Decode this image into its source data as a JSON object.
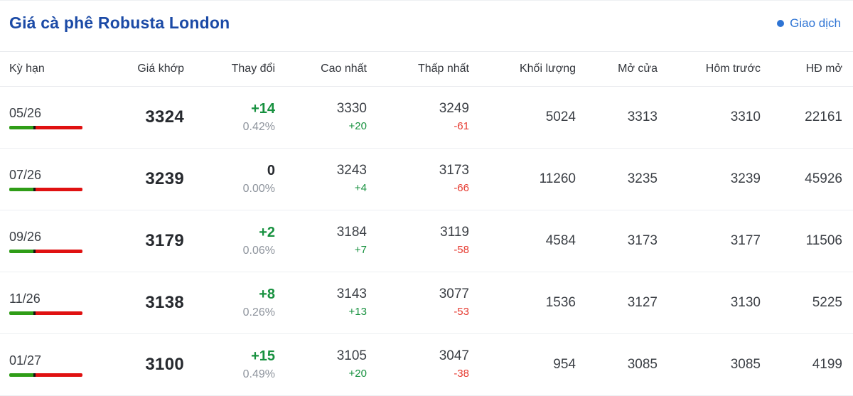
{
  "colors": {
    "title_blue": "#1b4aa6",
    "legend_blue": "#2e74d4",
    "up_green": "#17913f",
    "down_red": "#e63a30",
    "muted_gray": "#8e949d",
    "bar_green": "#2f9d17",
    "bar_red": "#e01111"
  },
  "chart_data": {
    "type": "table",
    "title": "Giá cà phê Robusta London",
    "legend": "Giao dịch",
    "legend_position": "top-right",
    "columns": [
      "Kỳ hạn",
      "Giá khớp",
      "Thay đổi",
      "Cao nhất",
      "Thấp nhất",
      "Khối lượng",
      "Mở cửa",
      "Hôm trước",
      "HĐ mở"
    ],
    "rows": [
      {
        "term": "05/26",
        "price": "3324",
        "change": "+14",
        "change_pct": "0.42%",
        "change_dir": "up",
        "high": "3330",
        "high_change": "+20",
        "low": "3249",
        "low_change": "-61",
        "volume": "5024",
        "open": "3313",
        "prev_close": "3310",
        "open_interest": "22161"
      },
      {
        "term": "07/26",
        "price": "3239",
        "change": "0",
        "change_pct": "0.00%",
        "change_dir": "flat",
        "high": "3243",
        "high_change": "+4",
        "low": "3173",
        "low_change": "-66",
        "volume": "11260",
        "open": "3235",
        "prev_close": "3239",
        "open_interest": "45926"
      },
      {
        "term": "09/26",
        "price": "3179",
        "change": "+2",
        "change_pct": "0.06%",
        "change_dir": "up",
        "high": "3184",
        "high_change": "+7",
        "low": "3119",
        "low_change": "-58",
        "volume": "4584",
        "open": "3173",
        "prev_close": "3177",
        "open_interest": "11506"
      },
      {
        "term": "11/26",
        "price": "3138",
        "change": "+8",
        "change_pct": "0.26%",
        "change_dir": "up",
        "high": "3143",
        "high_change": "+13",
        "low": "3077",
        "low_change": "-53",
        "volume": "1536",
        "open": "3127",
        "prev_close": "3130",
        "open_interest": "5225"
      },
      {
        "term": "01/27",
        "price": "3100",
        "change": "+15",
        "change_pct": "0.49%",
        "change_dir": "up",
        "high": "3105",
        "high_change": "+20",
        "low": "3047",
        "low_change": "-38",
        "volume": "954",
        "open": "3085",
        "prev_close": "3085",
        "open_interest": "4199"
      }
    ]
  }
}
